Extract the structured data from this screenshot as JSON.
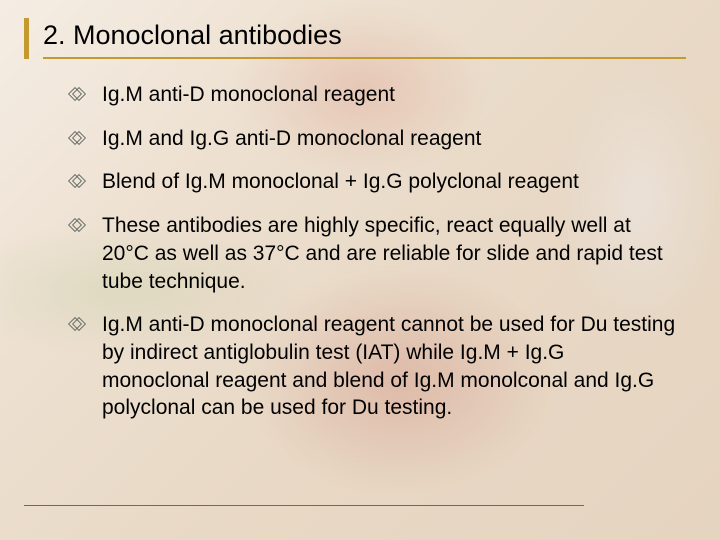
{
  "colors": {
    "accent": "#c29a30",
    "title_text": "#000000",
    "body_text": "#000000",
    "bullet_outline": "#6b726b",
    "footer_rule": "#8a662e"
  },
  "title": "2.  Monoclonal antibodies",
  "bullets": [
    "Ig.M anti-D monoclonal reagent",
    "Ig.M and Ig.G anti-D monoclonal reagent",
    "Blend of Ig.M monoclonal + Ig.G polyclonal reagent",
    "These antibodies are highly specific, react equally well at 20°C as well as 37°C and are reliable for slide and rapid test tube technique.",
    "Ig.M anti-D monoclonal reagent cannot be used for Du testing by indirect antiglobulin test (IAT) while Ig.M + Ig.G monoclonal reagent and blend of Ig.M monolconal and Ig.G polyclonal can be used for Du testing."
  ]
}
